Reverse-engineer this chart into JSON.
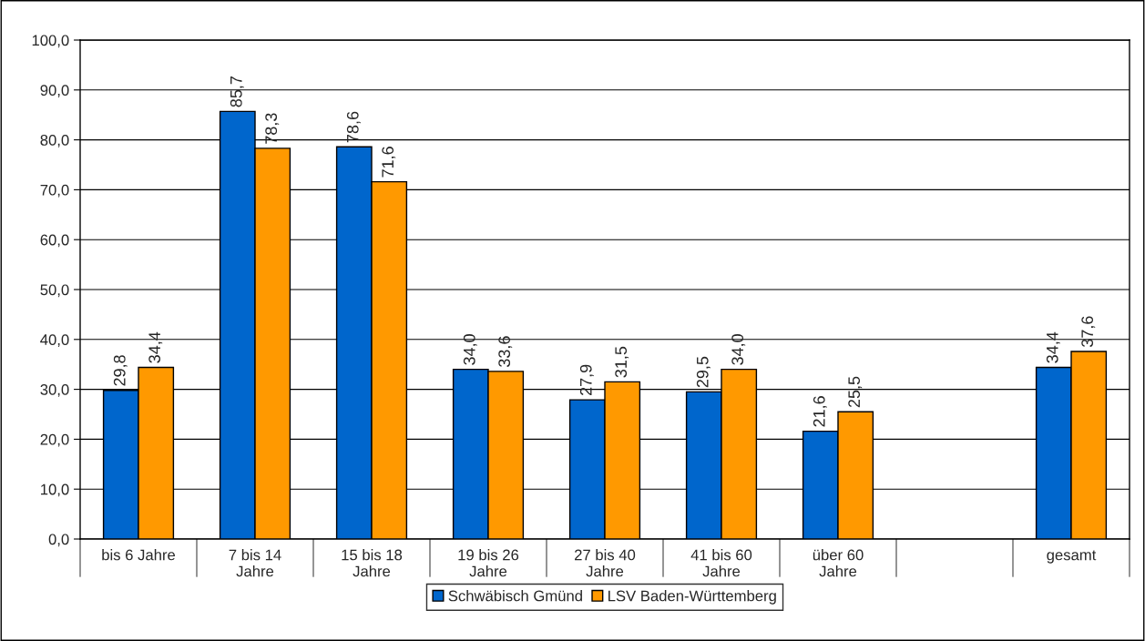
{
  "chart_data": {
    "type": "bar",
    "categories": [
      "bis 6 Jahre",
      "7 bis 14 Jahre",
      "15 bis 18 Jahre",
      "19 bis 26 Jahre",
      "27 bis 40 Jahre",
      "41 bis 60 Jahre",
      "über 60 Jahre",
      null,
      "gesamt"
    ],
    "series": [
      {
        "name": "Schwäbisch Gmünd",
        "color": "#0066cc",
        "values": [
          29.8,
          85.7,
          78.6,
          34.0,
          27.9,
          29.5,
          21.6,
          null,
          34.4
        ],
        "value_labels": [
          "29,8",
          "85,7",
          "78,6",
          "34,0",
          "27,9",
          "29,5",
          "21,6",
          null,
          "34,4"
        ]
      },
      {
        "name": "LSV Baden-Württemberg",
        "color": "#ff9900",
        "values": [
          34.4,
          78.3,
          71.6,
          33.6,
          31.5,
          34.0,
          25.5,
          null,
          37.6
        ],
        "value_labels": [
          "34,4",
          "78,3",
          "71,6",
          "33,6",
          "31,5",
          "34,0",
          "25,5",
          null,
          "37,6"
        ]
      }
    ],
    "ylim": [
      0,
      100
    ],
    "yticks": [
      {
        "value": 0,
        "label": "0,0"
      },
      {
        "value": 10,
        "label": "10,0"
      },
      {
        "value": 20,
        "label": "20,0"
      },
      {
        "value": 30,
        "label": "30,0"
      },
      {
        "value": 40,
        "label": "40,0"
      },
      {
        "value": 50,
        "label": "50,0"
      },
      {
        "value": 60,
        "label": "60,0"
      },
      {
        "value": 70,
        "label": "70,0"
      },
      {
        "value": 80,
        "label": "80,0"
      },
      {
        "value": 90,
        "label": "90,0"
      },
      {
        "value": 100,
        "label": "100,0"
      }
    ],
    "grid": "y",
    "legend": "bottom"
  }
}
